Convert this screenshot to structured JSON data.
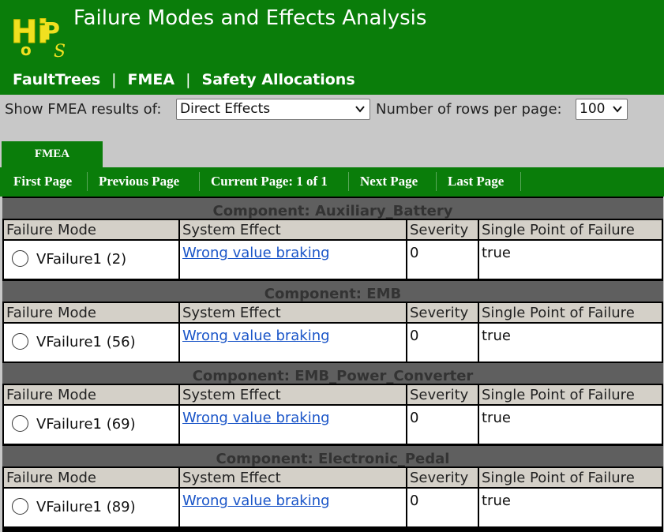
{
  "header": {
    "logo_text": "HiPoPS",
    "title": "Failure Modes and Effects Analysis",
    "nav": [
      "FaultTrees",
      "FMEA",
      "Safety Allocations"
    ]
  },
  "controls": {
    "show_label": "Show FMEA results of:",
    "show_value": "Direct Effects",
    "rows_label": "Number of rows per page:",
    "rows_value": "100"
  },
  "tab": {
    "label": "FMEA"
  },
  "pager": {
    "first": "First Page",
    "previous": "Previous Page",
    "current": "Current Page: 1 of 1",
    "next": "Next Page",
    "last": "Last Page"
  },
  "columns": [
    "Failure Mode",
    "System Effect",
    "Severity",
    "Single Point of Failure"
  ],
  "components": [
    {
      "name": "Component: Auxiliary_Battery",
      "failure_mode": "VFailure1 (2)",
      "effect": "Wrong value braking",
      "severity": "0",
      "spof": "true"
    },
    {
      "name": "Component: EMB",
      "failure_mode": "VFailure1 (56)",
      "effect": "Wrong value braking",
      "severity": "0",
      "spof": "true"
    },
    {
      "name": "Component: EMB_Power_Converter",
      "failure_mode": "VFailure1 (69)",
      "effect": "Wrong value braking",
      "severity": "0",
      "spof": "true"
    },
    {
      "name": "Component: Electronic_Pedal",
      "failure_mode": "VFailure1 (89)",
      "effect": "Wrong value braking",
      "severity": "0",
      "spof": "true"
    }
  ]
}
